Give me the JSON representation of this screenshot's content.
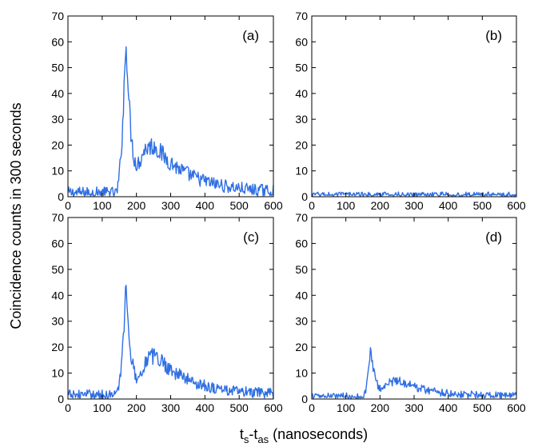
{
  "figure": {
    "ylabel": "Coincidence counts in 300 seconds",
    "xlabel": {
      "main": "t",
      "s1": "s",
      "dash": "-t",
      "s2": "as",
      "tail": " (nanoseconds)"
    }
  },
  "chart_data": [
    {
      "type": "line",
      "label": "(a)",
      "xlim": [
        0,
        600
      ],
      "ylim": [
        0,
        70
      ],
      "xticks": [
        0,
        100,
        200,
        300,
        400,
        500,
        600
      ],
      "yticks": [
        0,
        10,
        20,
        30,
        40,
        50,
        60,
        70
      ],
      "baseline": 1.5,
      "onset": 140,
      "peak_x": 170,
      "peak_y": 64,
      "hump_x": 255,
      "hump_y": 18,
      "tail_end": 530,
      "noise": 2.2,
      "series": [
        {
          "color": "#2f6fe4",
          "x_range": [
            0,
            600
          ],
          "step": 2
        }
      ]
    },
    {
      "type": "line",
      "label": "(b)",
      "xlim": [
        0,
        600
      ],
      "ylim": [
        0,
        70
      ],
      "xticks": [
        0,
        100,
        200,
        300,
        400,
        500,
        600
      ],
      "yticks": [
        0,
        10,
        20,
        30,
        40,
        50,
        60,
        70
      ],
      "baseline": 0.8,
      "onset": null,
      "peak_x": null,
      "peak_y": 0,
      "hump_x": null,
      "hump_y": 0,
      "tail_end": null,
      "noise": 1.0,
      "series": [
        {
          "color": "#2f6fe4",
          "x_range": [
            0,
            600
          ],
          "step": 2
        }
      ]
    },
    {
      "type": "line",
      "label": "(c)",
      "xlim": [
        0,
        600
      ],
      "ylim": [
        0,
        70
      ],
      "xticks": [
        0,
        100,
        200,
        300,
        400,
        500,
        600
      ],
      "yticks": [
        0,
        10,
        20,
        30,
        40,
        50,
        60,
        70
      ],
      "baseline": 1.5,
      "onset": 140,
      "peak_x": 170,
      "peak_y": 45,
      "hump_x": 260,
      "hump_y": 15,
      "tail_end": 520,
      "noise": 2.0,
      "series": [
        {
          "color": "#2f6fe4",
          "x_range": [
            0,
            600
          ],
          "step": 2
        }
      ]
    },
    {
      "type": "line",
      "label": "(d)",
      "xlim": [
        0,
        600
      ],
      "ylim": [
        0,
        70
      ],
      "xticks": [
        0,
        100,
        200,
        300,
        400,
        500,
        600
      ],
      "yticks": [
        0,
        10,
        20,
        30,
        40,
        50,
        60,
        70
      ],
      "baseline": 1.0,
      "onset": 150,
      "peak_x": 172,
      "peak_y": 20,
      "hump_x": 260,
      "hump_y": 6,
      "tail_end": 500,
      "noise": 1.4,
      "series": [
        {
          "color": "#2f6fe4",
          "x_range": [
            0,
            600
          ],
          "step": 2
        }
      ]
    }
  ]
}
